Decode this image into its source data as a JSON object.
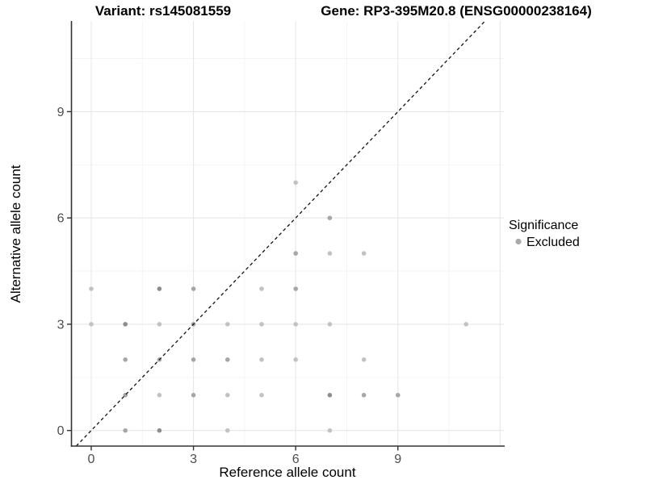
{
  "header": {
    "title_left": "Variant: rs145081559",
    "title_right": "Gene: RP3-395M20.8 (ENSG00000238164)"
  },
  "legend": {
    "title": "Significance",
    "items": [
      {
        "label": "Excluded",
        "color": "#a9a9a9"
      }
    ]
  },
  "chart_data": {
    "type": "scatter",
    "title": "Variant: rs145081559  |  Gene: RP3-395M20.8 (ENSG00000238164)",
    "xlabel": "Reference allele count",
    "ylabel": "Alternative allele count",
    "xlim": [
      -0.58,
      12.11
    ],
    "ylim": [
      -0.44,
      11.56
    ],
    "x_ticks": [
      0,
      3,
      6,
      9
    ],
    "y_ticks": [
      0,
      3,
      6,
      9
    ],
    "x_grid_major": [
      0,
      3,
      6,
      9,
      12
    ],
    "x_grid_minor": [
      1.5,
      4.5,
      7.5,
      10.5
    ],
    "y_grid_major": [
      0,
      3,
      6,
      9
    ],
    "y_grid_minor": [
      1.5,
      4.5,
      7.5,
      10.5
    ],
    "grid": true,
    "legend_position": "right",
    "identity_line": {
      "slope": 1,
      "intercept": 0,
      "style": "dashed",
      "color": "#111111"
    },
    "shade_colors": {
      "1": "#c2c2c2",
      "2": "#a6a6a6",
      "3": "#8d8d8d"
    },
    "series_name": "Excluded",
    "points": [
      {
        "x": 1,
        "y": 0,
        "shade": 2
      },
      {
        "x": 2,
        "y": 0,
        "shade": 3
      },
      {
        "x": 4,
        "y": 0,
        "shade": 1
      },
      {
        "x": 7,
        "y": 0,
        "shade": 1
      },
      {
        "x": 1,
        "y": 1,
        "shade": 2
      },
      {
        "x": 2,
        "y": 1,
        "shade": 1
      },
      {
        "x": 3,
        "y": 1,
        "shade": 2
      },
      {
        "x": 4,
        "y": 1,
        "shade": 1
      },
      {
        "x": 5,
        "y": 1,
        "shade": 1
      },
      {
        "x": 7,
        "y": 1,
        "shade": 3
      },
      {
        "x": 8,
        "y": 1,
        "shade": 2
      },
      {
        "x": 9,
        "y": 1,
        "shade": 2
      },
      {
        "x": 1,
        "y": 2,
        "shade": 2
      },
      {
        "x": 2,
        "y": 2,
        "shade": 2
      },
      {
        "x": 3,
        "y": 2,
        "shade": 2
      },
      {
        "x": 4,
        "y": 2,
        "shade": 2
      },
      {
        "x": 5,
        "y": 2,
        "shade": 1
      },
      {
        "x": 6,
        "y": 2,
        "shade": 1
      },
      {
        "x": 8,
        "y": 2,
        "shade": 1
      },
      {
        "x": 0,
        "y": 3,
        "shade": 1
      },
      {
        "x": 1,
        "y": 3,
        "shade": 3
      },
      {
        "x": 2,
        "y": 3,
        "shade": 1
      },
      {
        "x": 3,
        "y": 3,
        "shade": 2
      },
      {
        "x": 4,
        "y": 3,
        "shade": 1
      },
      {
        "x": 5,
        "y": 3,
        "shade": 1
      },
      {
        "x": 6,
        "y": 3,
        "shade": 1
      },
      {
        "x": 7,
        "y": 3,
        "shade": 1
      },
      {
        "x": 11,
        "y": 3,
        "shade": 1
      },
      {
        "x": 0,
        "y": 4,
        "shade": 1
      },
      {
        "x": 2,
        "y": 4,
        "shade": 3
      },
      {
        "x": 3,
        "y": 4,
        "shade": 2
      },
      {
        "x": 5,
        "y": 4,
        "shade": 1
      },
      {
        "x": 6,
        "y": 4,
        "shade": 2
      },
      {
        "x": 6,
        "y": 5,
        "shade": 2
      },
      {
        "x": 7,
        "y": 5,
        "shade": 1
      },
      {
        "x": 8,
        "y": 5,
        "shade": 1
      },
      {
        "x": 7,
        "y": 6,
        "shade": 2
      },
      {
        "x": 6,
        "y": 7,
        "shade": 1
      }
    ]
  }
}
